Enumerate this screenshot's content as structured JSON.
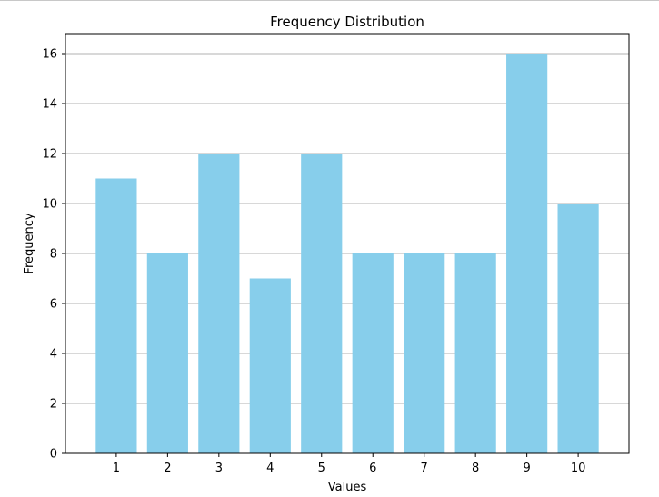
{
  "chart_data": {
    "type": "bar",
    "title": "Frequency Distribution",
    "xlabel": "Values",
    "ylabel": "Frequency",
    "categories": [
      "1",
      "2",
      "3",
      "4",
      "5",
      "6",
      "7",
      "8",
      "9",
      "10"
    ],
    "values": [
      11,
      8,
      12,
      7,
      12,
      8,
      8,
      8,
      16,
      10
    ],
    "ylim": [
      0,
      16.8
    ],
    "yticks": [
      "0",
      "2",
      "4",
      "6",
      "8",
      "10",
      "12",
      "14",
      "16"
    ],
    "grid": "y",
    "bar_color": "#87ceeb",
    "grid_color": "#b0b0b0"
  }
}
